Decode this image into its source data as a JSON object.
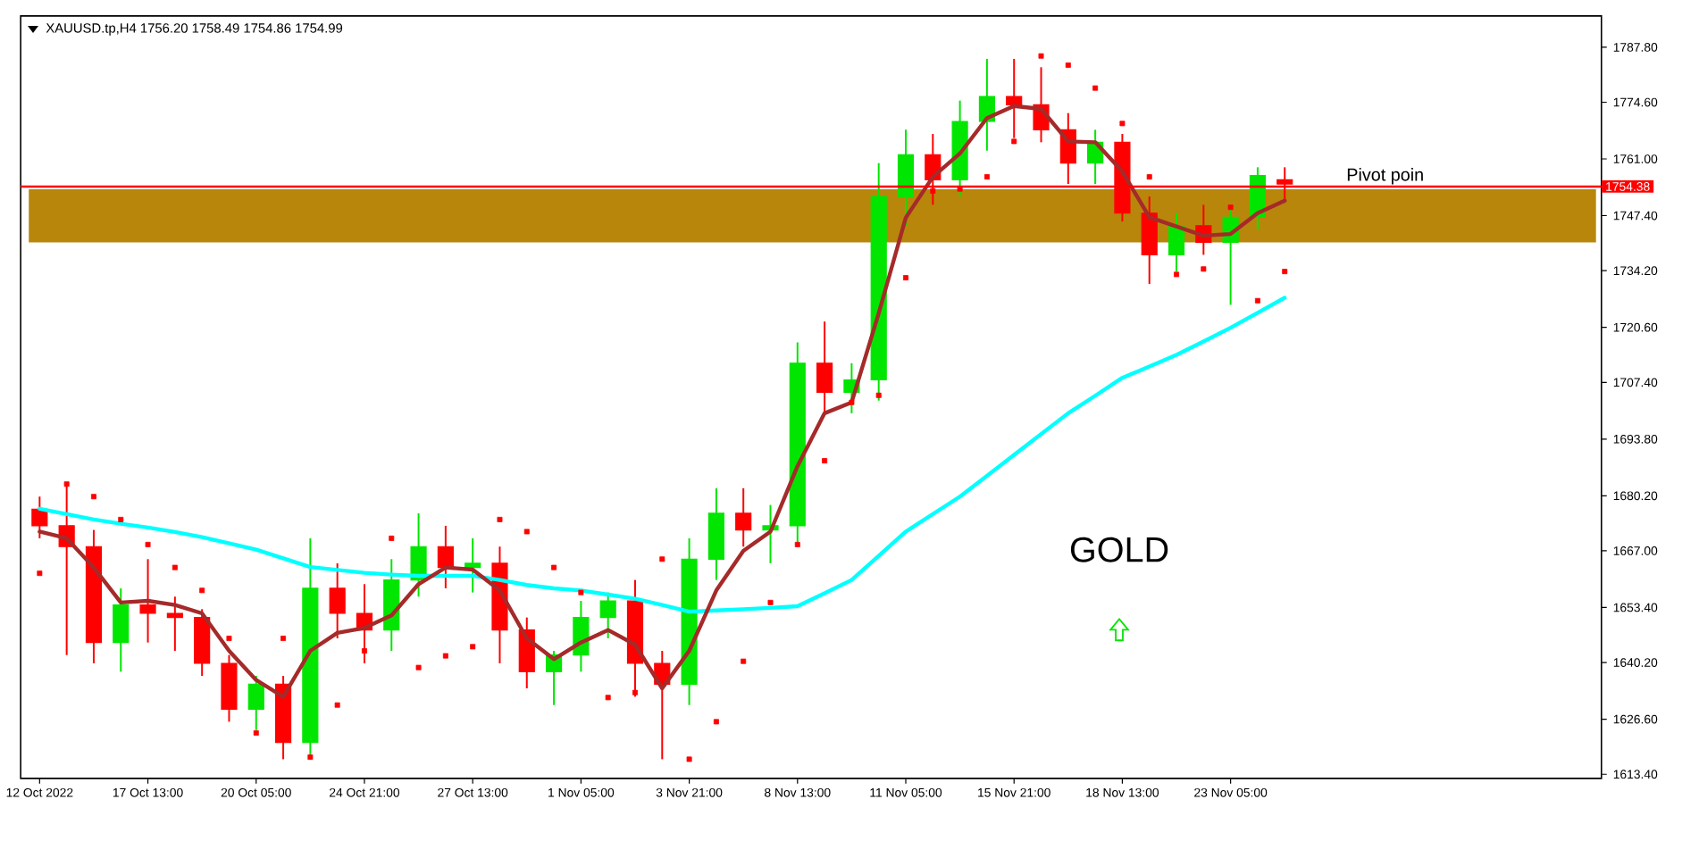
{
  "chart_data": {
    "type": "candlestick",
    "title": "XAUUSD.tp,H4 1756.20 1758.49 1754.86 1754.99",
    "categories": [
      "12 Oct 2022",
      null,
      null,
      null,
      "17 Oct 13:00",
      null,
      null,
      null,
      "20 Oct 05:00",
      null,
      null,
      null,
      "24 Oct 21:00",
      null,
      null,
      null,
      "27 Oct 13:00",
      null,
      null,
      null,
      "1 Nov 05:00",
      null,
      null,
      null,
      "3 Nov 21:00",
      null,
      null,
      null,
      "8 Nov 13:00",
      null,
      null,
      null,
      "11 Nov 05:00",
      null,
      null,
      null,
      "15 Nov 21:00",
      null,
      null,
      null,
      "18 Nov 13:00",
      null,
      null,
      null,
      "23 Nov 05:00",
      null,
      null
    ],
    "ohlc": [
      [
        1677,
        1680,
        1670,
        1673
      ],
      [
        1673,
        1683,
        1642,
        1668
      ],
      [
        1668,
        1672,
        1640,
        1645
      ],
      [
        1645,
        1658,
        1638,
        1654
      ],
      [
        1654,
        1665,
        1645,
        1652
      ],
      [
        1652,
        1656,
        1643,
        1651
      ],
      [
        1651,
        1653,
        1637,
        1640
      ],
      [
        1640,
        1642,
        1626,
        1629
      ],
      [
        1629,
        1637,
        1624,
        1635
      ],
      [
        1635,
        1637,
        1617,
        1621
      ],
      [
        1621,
        1670,
        1617,
        1658
      ],
      [
        1658,
        1664,
        1646,
        1652
      ],
      [
        1652,
        1659,
        1640,
        1648
      ],
      [
        1648,
        1665,
        1643,
        1660
      ],
      [
        1660,
        1676,
        1656,
        1668
      ],
      [
        1668,
        1673,
        1658,
        1663
      ],
      [
        1663,
        1670,
        1657,
        1664
      ],
      [
        1664,
        1668,
        1640,
        1648
      ],
      [
        1648,
        1651,
        1634,
        1638
      ],
      [
        1638,
        1643,
        1630,
        1642
      ],
      [
        1642,
        1655,
        1638,
        1651
      ],
      [
        1651,
        1657,
        1646,
        1655
      ],
      [
        1655,
        1660,
        1632,
        1640
      ],
      [
        1640,
        1643,
        1617,
        1635
      ],
      [
        1635,
        1670,
        1630,
        1665
      ],
      [
        1665,
        1682,
        1660,
        1676
      ],
      [
        1676,
        1682,
        1668,
        1672
      ],
      [
        1672,
        1678,
        1664,
        1673
      ],
      [
        1673,
        1717,
        1668,
        1712
      ],
      [
        1712,
        1722,
        1700,
        1705
      ],
      [
        1705,
        1712,
        1700,
        1708
      ],
      [
        1708,
        1760,
        1703,
        1752
      ],
      [
        1752,
        1768,
        1745,
        1762
      ],
      [
        1762,
        1767,
        1750,
        1756
      ],
      [
        1756,
        1775,
        1752,
        1770
      ],
      [
        1770,
        1785,
        1763,
        1776
      ],
      [
        1776,
        1785,
        1766,
        1774
      ],
      [
        1774,
        1783,
        1765,
        1768
      ],
      [
        1768,
        1772,
        1755,
        1760
      ],
      [
        1760,
        1768,
        1755,
        1765
      ],
      [
        1765,
        1767,
        1746,
        1748
      ],
      [
        1748,
        1752,
        1731,
        1738
      ],
      [
        1738,
        1748,
        1734,
        1745
      ],
      [
        1745,
        1750,
        1738,
        1741
      ],
      [
        1741,
        1749,
        1726,
        1747
      ],
      [
        1747,
        1759,
        1744,
        1757
      ],
      [
        1756,
        1759,
        1751,
        1755
      ]
    ],
    "series": [
      {
        "type": "line",
        "color": "#00ffff",
        "values": [
          1677.1,
          1675.8,
          1674.5,
          1673.5,
          1672.6,
          1671.5,
          1670.3,
          1668.8,
          1667.3,
          1665.2,
          1663.1,
          1662.4,
          1661.7,
          1661.3,
          1661,
          1661,
          1661,
          1660,
          1658.8,
          1658,
          1657.5,
          1656.5,
          1655.5,
          1654,
          1652.4,
          1652.7,
          1653,
          1653.3,
          1653.7,
          1656.8,
          1660,
          1665.8,
          1671.6,
          1675.8,
          1680,
          1685,
          1690,
          1695,
          1700,
          1704.2,
          1708.5,
          1711.2,
          1714,
          1717.2,
          1720.5,
          1724.1,
          1727.7
        ]
      },
      {
        "type": "line",
        "color": "#a52a2a",
        "values": [
          1671.6,
          1670,
          1663,
          1654.6,
          1655,
          1654,
          1652,
          1643,
          1636,
          1632,
          1643,
          1647.3,
          1648.5,
          1651.5,
          1659,
          1663,
          1662.5,
          1657.5,
          1646,
          1641,
          1645,
          1648,
          1644.5,
          1634,
          1643,
          1657.5,
          1667,
          1671.6,
          1687.3,
          1700,
          1702.6,
          1724,
          1746.9,
          1756.7,
          1762.3,
          1770.8,
          1773.7,
          1773,
          1765.2,
          1765,
          1758,
          1747,
          1744.8,
          1742.6,
          1743,
          1748,
          1751
        ]
      },
      {
        "type": "scatter",
        "marker": "square",
        "color": "#ff0000",
        "values": [
          1661.6,
          1683,
          1680,
          1674.5,
          1668.5,
          1663,
          1657.5,
          1646,
          1623.3,
          1646,
          1617.5,
          1630,
          1643,
          1670,
          1639,
          1641.8,
          1644,
          1674.5,
          1671.6,
          1663,
          1657,
          1631.8,
          1633,
          1665,
          1617,
          1626,
          1640.5,
          1654.6,
          1668.5,
          1688.6,
          1702.6,
          1704.3,
          1732.5,
          1753.3,
          1753.8,
          1756.7,
          1765.2,
          1785.7,
          1783.5,
          1778,
          1769.5,
          1756.7,
          1733.3,
          1734.6,
          1749.4,
          1727,
          1734
        ]
      }
    ],
    "ylim": [
      1612.4,
      1795.3
    ],
    "yticks": [
      {
        "value": 1613.4,
        "label": "1613.40"
      },
      {
        "value": 1626.6,
        "label": "1626.60"
      },
      {
        "value": 1640.2,
        "label": "1640.20"
      },
      {
        "value": 1653.4,
        "label": "1653.40"
      },
      {
        "value": 1667,
        "label": "1667.00"
      },
      {
        "value": 1680.2,
        "label": "1680.20"
      },
      {
        "value": 1693.8,
        "label": "1693.80"
      },
      {
        "value": 1707.4,
        "label": "1707.40"
      },
      {
        "value": 1720.6,
        "label": "1720.60"
      },
      {
        "value": 1734.2,
        "label": "1734.20"
      },
      {
        "value": 1747.4,
        "label": "1747.40"
      },
      {
        "value": 1761,
        "label": "1761.00"
      },
      {
        "value": 1774.6,
        "label": "1774.60"
      },
      {
        "value": 1787.8,
        "label": "1787.80"
      }
    ],
    "bands": [
      {
        "axis": "y",
        "from": 1741,
        "to": 1753.7,
        "color": "#b8860b"
      }
    ],
    "ref_lines": [
      {
        "axis": "y",
        "value": 1754.38,
        "label": "1754.38",
        "color": "#ff0000"
      }
    ],
    "annotations": [
      "Pivot poin",
      "GOLD"
    ]
  }
}
